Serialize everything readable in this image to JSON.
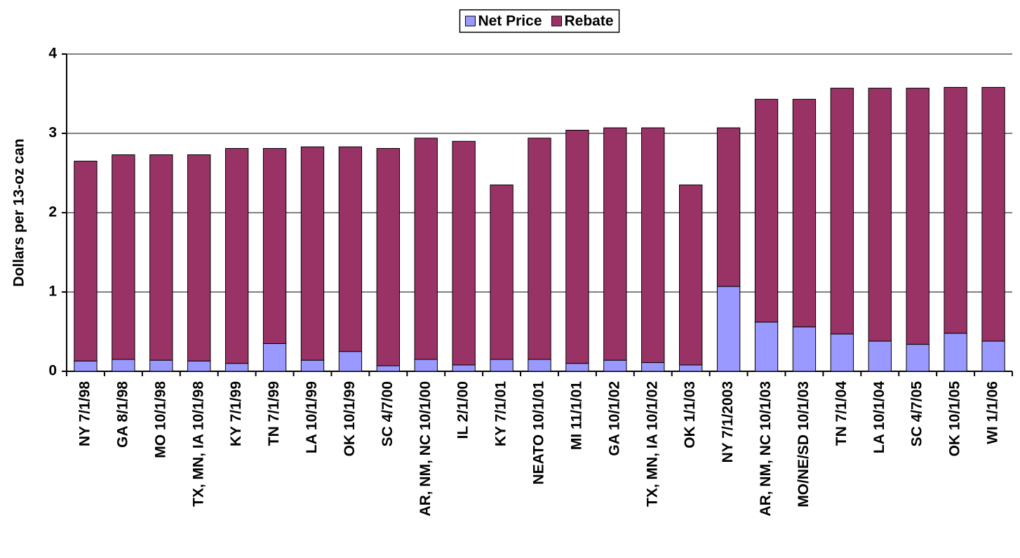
{
  "chart_data": {
    "type": "stacked_bar",
    "y_label": "Dollars per 13-oz can",
    "categories": [
      "NY 7/1/98",
      "GA 8/1/98",
      "MO 10/1/98",
      "TX, MN, IA 10/1/98",
      "KY 7/1/99",
      "TN 7/1/99",
      "LA 10/1/99",
      "OK 10/1/99",
      "SC 4/7/00",
      "AR, NM, NC 10/1/00",
      "IL 2/1/00",
      "KY 7/1/01",
      "NEATO 10/1/01",
      "MI 11/1/01",
      "GA 10/1/02",
      "TX, MN, IA 10/1/02",
      "OK 1/1/03",
      "NY 7/1/2003",
      "AR, NM, NC 10/1/03",
      "MO/NE/SD 10/1/03",
      "TN 7/1/04",
      "LA 10/1/04",
      "SC 4/7/05",
      "OK 10/1/05",
      "WI 1/1/06"
    ],
    "series": [
      {
        "name": "Net Price",
        "color": "#9999ff",
        "values": [
          0.13,
          0.15,
          0.14,
          0.13,
          0.1,
          0.35,
          0.14,
          0.25,
          0.07,
          0.15,
          0.08,
          0.15,
          0.15,
          0.1,
          0.14,
          0.11,
          0.08,
          1.07,
          0.62,
          0.56,
          0.47,
          0.38,
          0.34,
          0.48,
          0.38
        ]
      },
      {
        "name": "Rebate",
        "color": "#993366",
        "values": [
          2.52,
          2.58,
          2.59,
          2.6,
          2.71,
          2.46,
          2.69,
          2.58,
          2.74,
          2.79,
          2.82,
          2.2,
          2.79,
          2.94,
          2.93,
          2.96,
          2.27,
          2.0,
          2.81,
          2.87,
          3.1,
          3.19,
          3.23,
          3.1,
          3.2
        ]
      }
    ],
    "ylim": [
      0,
      4
    ],
    "yticks": [
      0,
      1,
      2,
      3,
      4
    ],
    "grid": true,
    "legend": "top"
  }
}
